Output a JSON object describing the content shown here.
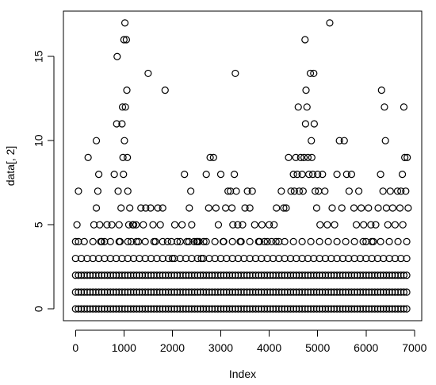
{
  "chart_data": {
    "type": "scatter",
    "title": "",
    "xlabel": "Index",
    "ylabel": "data[, 2]",
    "xlim": [
      -250,
      7150
    ],
    "ylim": [
      -0.7,
      17.7
    ],
    "xticks": [
      0,
      1000,
      2000,
      3000,
      4000,
      5000,
      6000,
      7000
    ],
    "yticks": [
      0,
      5,
      10,
      15
    ],
    "xtick_labels": [
      "0",
      "1000",
      "2000",
      "3000",
      "4000",
      "5000",
      "6000",
      "7000"
    ],
    "ytick_labels": [
      "0",
      "5",
      "10",
      "15"
    ],
    "grid": false,
    "legend": "none",
    "series": [
      {
        "points": [
          [
            60,
            7
          ],
          [
            30,
            5
          ],
          [
            60,
            4
          ],
          [
            260,
            9
          ],
          [
            380,
            5
          ],
          [
            430,
            6
          ],
          [
            430,
            10
          ],
          [
            460,
            7
          ],
          [
            480,
            8
          ],
          [
            500,
            5
          ],
          [
            520,
            4
          ],
          [
            600,
            4
          ],
          [
            650,
            5
          ],
          [
            750,
            5
          ],
          [
            800,
            8
          ],
          [
            850,
            11
          ],
          [
            860,
            15
          ],
          [
            880,
            7
          ],
          [
            900,
            5
          ],
          [
            920,
            4
          ],
          [
            940,
            6
          ],
          [
            960,
            11
          ],
          [
            970,
            12
          ],
          [
            980,
            9
          ],
          [
            990,
            8
          ],
          [
            1000,
            16
          ],
          [
            1010,
            10
          ],
          [
            1020,
            17
          ],
          [
            1030,
            12
          ],
          [
            1050,
            16
          ],
          [
            1060,
            13
          ],
          [
            1070,
            9
          ],
          [
            1080,
            7
          ],
          [
            1100,
            5
          ],
          [
            1120,
            6
          ],
          [
            1150,
            4
          ],
          [
            1180,
            5
          ],
          [
            1200,
            5
          ],
          [
            1250,
            5
          ],
          [
            1300,
            4
          ],
          [
            1350,
            6
          ],
          [
            1400,
            5
          ],
          [
            1450,
            6
          ],
          [
            1500,
            14
          ],
          [
            1550,
            6
          ],
          [
            1600,
            5
          ],
          [
            1650,
            4
          ],
          [
            1700,
            6
          ],
          [
            1750,
            5
          ],
          [
            1800,
            6
          ],
          [
            1850,
            13
          ],
          [
            1900,
            4
          ],
          [
            2000,
            3
          ],
          [
            2050,
            5
          ],
          [
            2100,
            4
          ],
          [
            2200,
            5
          ],
          [
            2250,
            8
          ],
          [
            2300,
            4
          ],
          [
            2350,
            6
          ],
          [
            2380,
            7
          ],
          [
            2400,
            5
          ],
          [
            2450,
            4
          ],
          [
            2500,
            4
          ],
          [
            2550,
            4
          ],
          [
            2600,
            3
          ],
          [
            2650,
            4
          ],
          [
            2700,
            8
          ],
          [
            2750,
            6
          ],
          [
            2780,
            9
          ],
          [
            2850,
            9
          ],
          [
            2900,
            6
          ],
          [
            2950,
            5
          ],
          [
            3000,
            8
          ],
          [
            3050,
            4
          ],
          [
            3100,
            6
          ],
          [
            3150,
            7
          ],
          [
            3200,
            7
          ],
          [
            3230,
            6
          ],
          [
            3250,
            5
          ],
          [
            3280,
            8
          ],
          [
            3300,
            14
          ],
          [
            3320,
            7
          ],
          [
            3350,
            5
          ],
          [
            3400,
            4
          ],
          [
            3450,
            5
          ],
          [
            3500,
            6
          ],
          [
            3550,
            7
          ],
          [
            3600,
            6
          ],
          [
            3650,
            7
          ],
          [
            3700,
            5
          ],
          [
            3800,
            4
          ],
          [
            3850,
            5
          ],
          [
            3900,
            4
          ],
          [
            4000,
            5
          ],
          [
            4050,
            4
          ],
          [
            4100,
            5
          ],
          [
            4150,
            6
          ],
          [
            4200,
            4
          ],
          [
            4250,
            7
          ],
          [
            4300,
            6
          ],
          [
            4350,
            6
          ],
          [
            4400,
            9
          ],
          [
            4450,
            7
          ],
          [
            4500,
            8
          ],
          [
            4520,
            7
          ],
          [
            4550,
            9
          ],
          [
            4580,
            8
          ],
          [
            4600,
            12
          ],
          [
            4620,
            7
          ],
          [
            4650,
            9
          ],
          [
            4680,
            8
          ],
          [
            4700,
            7
          ],
          [
            4720,
            9
          ],
          [
            4740,
            16
          ],
          [
            4750,
            11
          ],
          [
            4760,
            13
          ],
          [
            4780,
            12
          ],
          [
            4800,
            9
          ],
          [
            4820,
            8
          ],
          [
            4850,
            14
          ],
          [
            4870,
            10
          ],
          [
            4880,
            9
          ],
          [
            4900,
            8
          ],
          [
            4920,
            14
          ],
          [
            4930,
            11
          ],
          [
            4950,
            7
          ],
          [
            4980,
            6
          ],
          [
            5000,
            8
          ],
          [
            5020,
            7
          ],
          [
            5050,
            5
          ],
          [
            5100,
            8
          ],
          [
            5150,
            7
          ],
          [
            5200,
            5
          ],
          [
            5250,
            17
          ],
          [
            5300,
            6
          ],
          [
            5350,
            5
          ],
          [
            5400,
            8
          ],
          [
            5450,
            10
          ],
          [
            5500,
            6
          ],
          [
            5550,
            10
          ],
          [
            5600,
            8
          ],
          [
            5650,
            7
          ],
          [
            5700,
            8
          ],
          [
            5750,
            6
          ],
          [
            5800,
            5
          ],
          [
            5850,
            7
          ],
          [
            5900,
            6
          ],
          [
            5950,
            5
          ],
          [
            6000,
            4
          ],
          [
            6050,
            6
          ],
          [
            6100,
            5
          ],
          [
            6150,
            4
          ],
          [
            6200,
            5
          ],
          [
            6250,
            6
          ],
          [
            6300,
            8
          ],
          [
            6320,
            13
          ],
          [
            6350,
            7
          ],
          [
            6380,
            12
          ],
          [
            6400,
            10
          ],
          [
            6420,
            6
          ],
          [
            6450,
            5
          ],
          [
            6500,
            7
          ],
          [
            6550,
            6
          ],
          [
            6600,
            5
          ],
          [
            6650,
            7
          ],
          [
            6700,
            6
          ],
          [
            6720,
            7
          ],
          [
            6750,
            8
          ],
          [
            6760,
            5
          ],
          [
            6780,
            12
          ],
          [
            6800,
            9
          ],
          [
            6820,
            7
          ],
          [
            6850,
            9
          ],
          [
            6870,
            6
          ]
        ]
      }
    ]
  }
}
